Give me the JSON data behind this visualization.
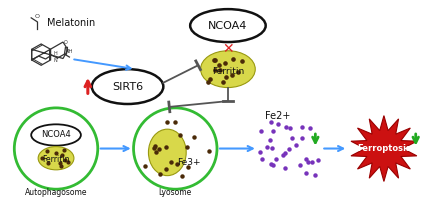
{
  "bg_color": "#ffffff",
  "melatonin_label": "Melatonin",
  "sirt6_label": "SIRT6",
  "ncoa4_top_label": "NCOA4",
  "ferritin_top_label": "Ferritin",
  "ncoa4_bottom_label": "NCOA4",
  "ferritin_bottom_label": "Ferritin",
  "autophagosome_label": "Autophagosome",
  "lysosome_label": "Lyosome",
  "fe3_label": "Fe3+",
  "fe2_label": "Fe2+",
  "ferroptosis_label": "Ferroptosis",
  "ferritin_color": "#d8d84a",
  "ferritin_dot_color": "#4a2a08",
  "ncoa4_ellipse_color": "#111111",
  "sirt6_ellipse_color": "#111111",
  "autophagosome_circle_color": "#33bb33",
  "lysosome_circle_color": "#33bb33",
  "arrow_blue": "#4499ff",
  "arrow_red": "#dd2222",
  "arrow_green": "#22aa22",
  "ferroptosis_color": "#cc1111",
  "fe2_dot_color": "#7733bb",
  "inhibit_color": "#555555",
  "label_color": "#111111",
  "mol_color": "#333333"
}
